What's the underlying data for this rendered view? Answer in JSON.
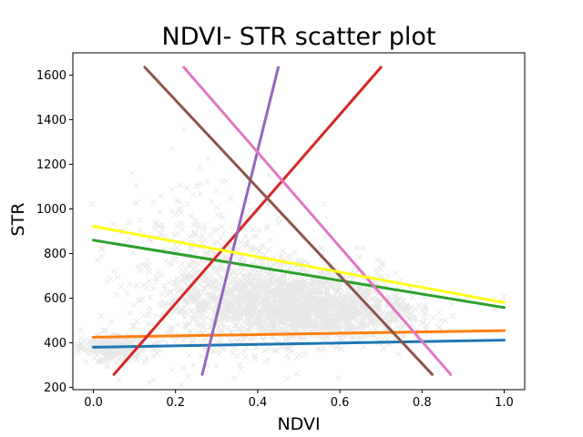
{
  "chart_data": {
    "type": "scatter",
    "title": "NDVI- STR scatter plot",
    "xlabel": "NDVI",
    "ylabel": "STR",
    "xlim": [
      -0.05,
      1.05
    ],
    "ylim": [
      190,
      1700
    ],
    "xticks": [
      0.0,
      0.2,
      0.4,
      0.6,
      0.8,
      1.0
    ],
    "xtick_labels": [
      "0.0",
      "0.2",
      "0.4",
      "0.6",
      "0.8",
      "1.0"
    ],
    "yticks": [
      200,
      400,
      600,
      800,
      1000,
      1200,
      1400,
      1600
    ],
    "ytick_labels": [
      "200",
      "400",
      "600",
      "800",
      "1000",
      "1200",
      "1400",
      "1600"
    ],
    "grid": false,
    "scatter": {
      "marker": "x",
      "color": "#000000",
      "alpha": 0.03,
      "description_clusters": [
        {
          "cx": 0.45,
          "cy": 580,
          "sx": 0.13,
          "sy": 90,
          "weight": 0.55
        },
        {
          "cx": 0.62,
          "cy": 530,
          "sx": 0.1,
          "sy": 60,
          "weight": 0.2
        },
        {
          "cx": 0.05,
          "cy": 380,
          "sx": 0.04,
          "sy": 30,
          "weight": 0.1
        },
        {
          "cx": 0.27,
          "cy": 700,
          "sx": 0.12,
          "sy": 220,
          "weight": 0.15
        }
      ]
    },
    "series": [
      {
        "color": "#1f77b4",
        "x": [
          0.0,
          1.0
        ],
        "y": [
          380,
          412
        ]
      },
      {
        "color": "#ff7f0e",
        "x": [
          0.0,
          1.0
        ],
        "y": [
          425,
          455
        ]
      },
      {
        "color": "#2ca02c",
        "x": [
          0.0,
          1.0
        ],
        "y": [
          860,
          558
        ]
      },
      {
        "color": "#d62728",
        "x": [
          0.05,
          0.7
        ],
        "y": [
          258,
          1635
        ]
      },
      {
        "color": "#9467bd",
        "x": [
          0.265,
          0.45
        ],
        "y": [
          258,
          1635
        ]
      },
      {
        "color": "#8c564b",
        "x": [
          0.125,
          0.825
        ],
        "y": [
          1635,
          258
        ]
      },
      {
        "color": "#e377c2",
        "x": [
          0.22,
          0.87
        ],
        "y": [
          1635,
          258
        ]
      },
      {
        "color": "#ffff1a",
        "x": [
          0.0,
          1.0
        ],
        "y": [
          922,
          580
        ]
      }
    ]
  }
}
